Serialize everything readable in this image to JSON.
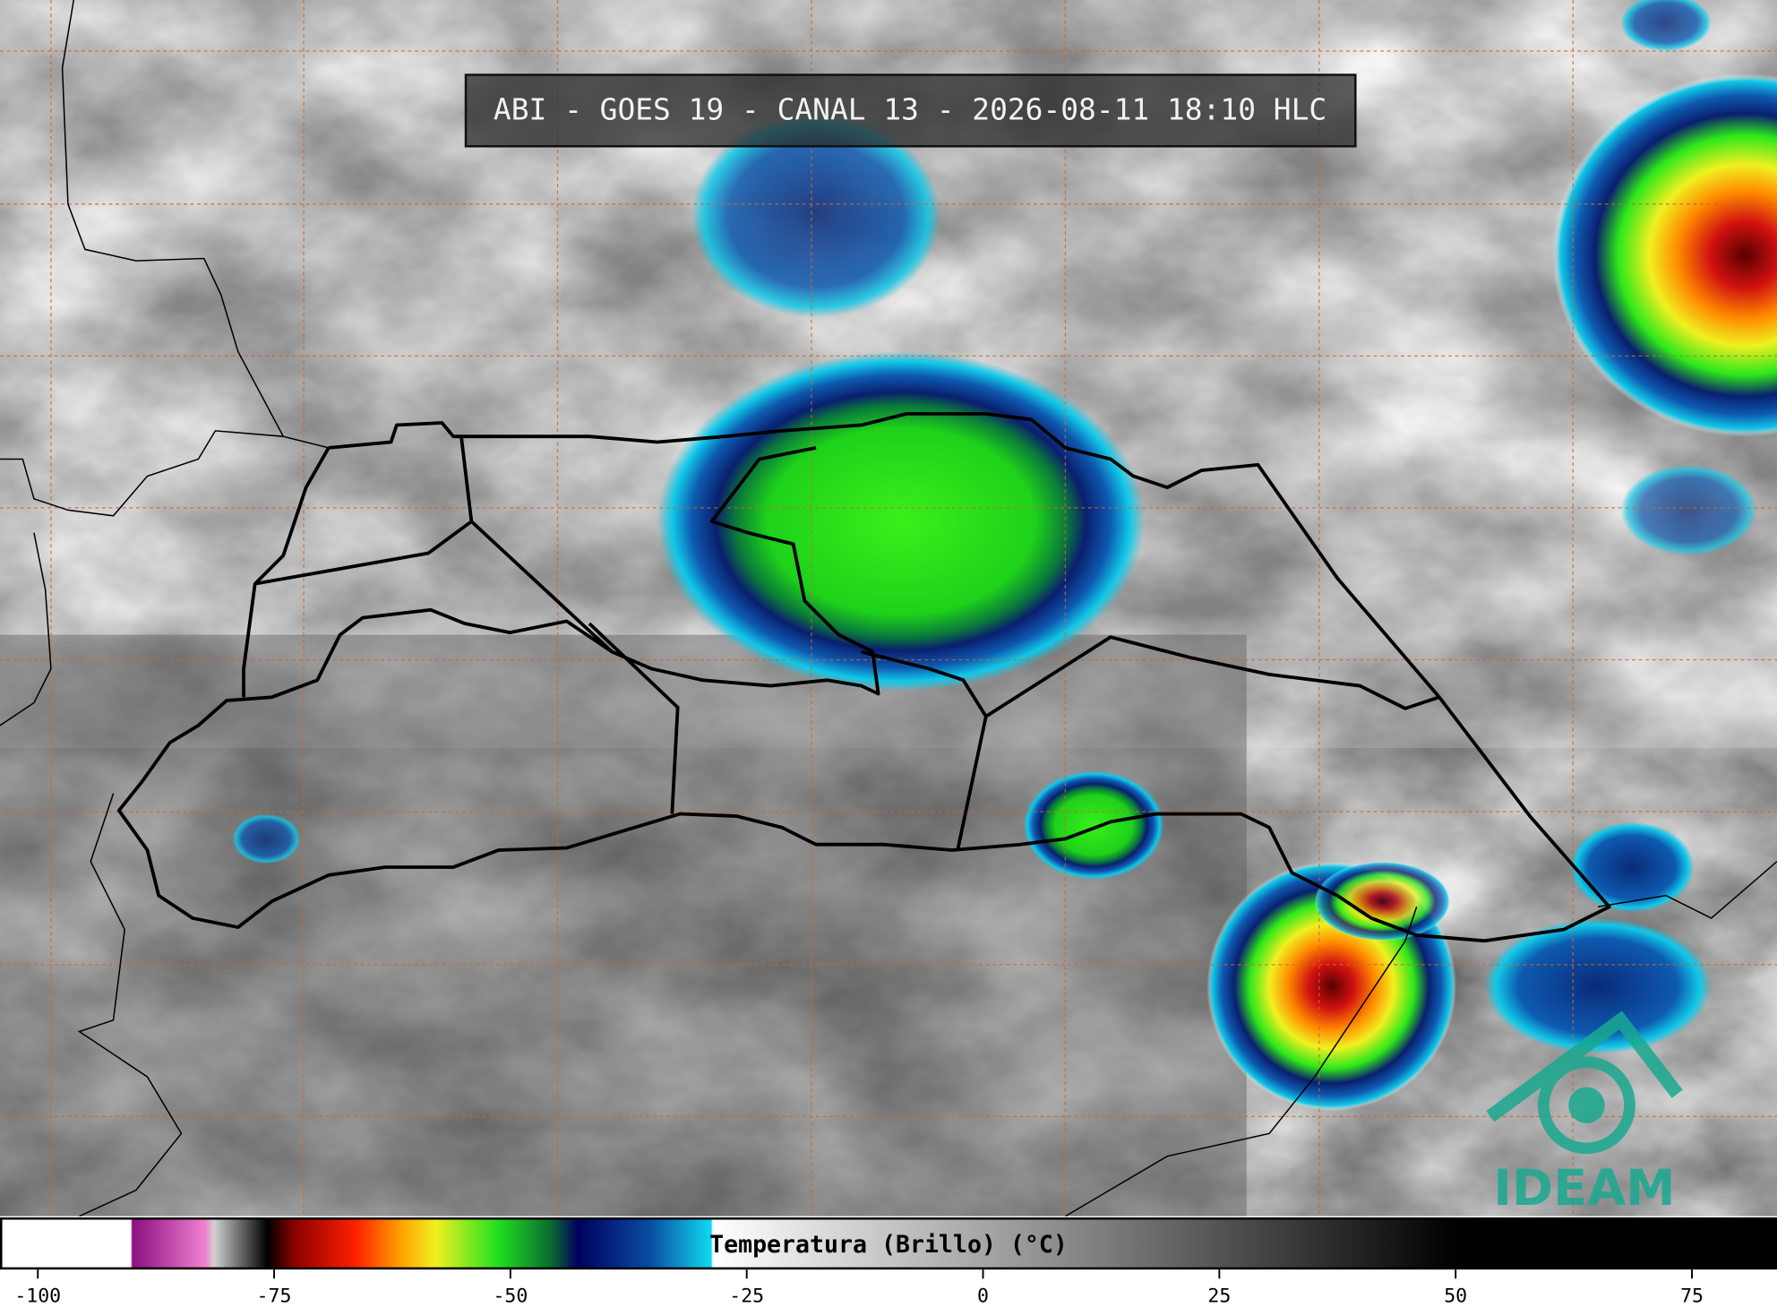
{
  "header": {
    "title": "ABI - GOES 19 - CANAL 13 - 2026-08-11 18:10 HLC"
  },
  "logo": {
    "text": "IDEAM"
  },
  "colorbar": {
    "label": "Temperatura (Brillo) (°C)",
    "lim": [
      -104,
      84
    ],
    "ticks": [
      -100,
      -75,
      -50,
      -25,
      0,
      25,
      50,
      75
    ]
  }
}
